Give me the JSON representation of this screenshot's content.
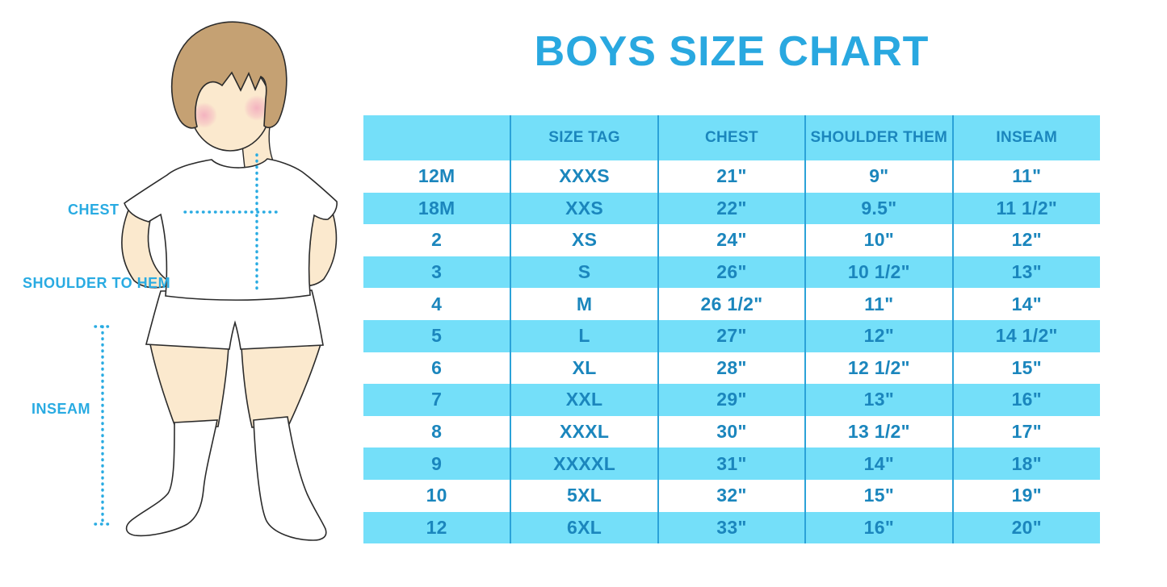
{
  "title": "BOYS SIZE CHART",
  "figure": {
    "labels": {
      "chest": "CHEST",
      "shoulder_to_hem": "SHOULDER TO HEM",
      "inseam": "INSEAM"
    }
  },
  "chart_data": {
    "type": "table",
    "title": "BOYS SIZE CHART",
    "columns": [
      "",
      "SIZE TAG",
      "CHEST",
      "SHOULDER THEM",
      "INSEAM"
    ],
    "rows": [
      [
        "12M",
        "XXXS",
        "21\"",
        "9\"",
        "11\""
      ],
      [
        "18M",
        "XXS",
        "22\"",
        "9.5\"",
        "11 1/2\""
      ],
      [
        "2",
        "XS",
        "24\"",
        "10\"",
        "12\""
      ],
      [
        "3",
        "S",
        "26\"",
        "10 1/2\"",
        "13\""
      ],
      [
        "4",
        "M",
        "26 1/2\"",
        "11\"",
        "14\""
      ],
      [
        "5",
        "L",
        "27\"",
        "12\"",
        "14 1/2\""
      ],
      [
        "6",
        "XL",
        "28\"",
        "12 1/2\"",
        "15\""
      ],
      [
        "7",
        "XXL",
        "29\"",
        "13\"",
        "16\""
      ],
      [
        "8",
        "XXXL",
        "30\"",
        "13 1/2\"",
        "17\""
      ],
      [
        "9",
        "XXXXL",
        "31\"",
        "14\"",
        "18\""
      ],
      [
        "10",
        "5XL",
        "32\"",
        "15\"",
        "19\""
      ],
      [
        "12",
        "6XL",
        "33\"",
        "16\"",
        "20\""
      ]
    ],
    "layout": {
      "striped": true,
      "stripe_color": "#74DFF9",
      "grid_lines": "vertical-only",
      "header_background": "#74DFF9"
    }
  },
  "colors": {
    "title_blue": "#29A8E0",
    "label_blue": "#29ABE2",
    "row_stripe": "#74DFF9",
    "grid_line": "#2BA2D8",
    "cell_text": "#1B86BD",
    "dotted_line": "#29ABE2",
    "hair": "#C5A173",
    "skin": "#FBE9CE",
    "blush": "#F2A9BD",
    "outline": "#2B2B2B"
  }
}
